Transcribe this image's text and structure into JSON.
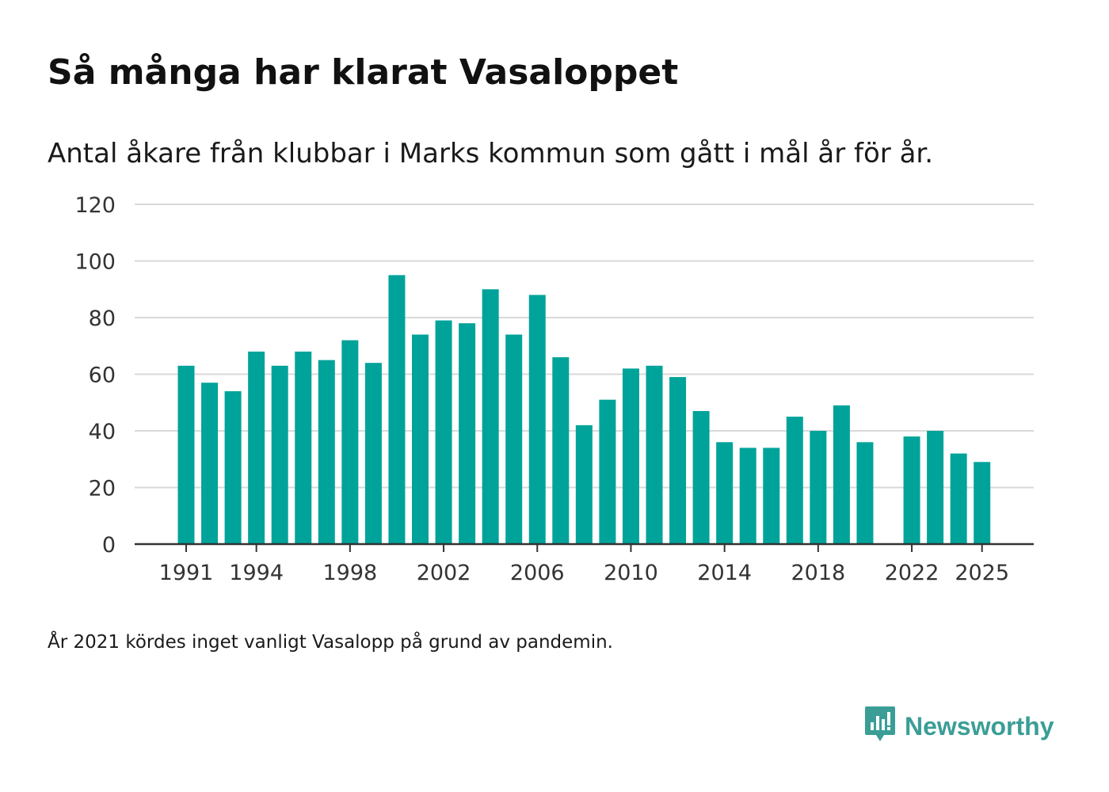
{
  "header": {
    "title": "Så många har klarat Vasaloppet",
    "subtitle": "Antal åkare från klubbar i Marks kommun som gått i mål år för år."
  },
  "footnote": "År 2021 kördes inget vanligt Vasalopp på grund av pandemin.",
  "brand": {
    "name": "Newsworthy",
    "icon": "newsworthy-logo-icon",
    "color": "#3a9e96"
  },
  "chart_data": {
    "type": "bar",
    "title": "Så många har klarat Vasaloppet",
    "xlabel": "",
    "ylabel": "",
    "bar_color": "#00a39a",
    "grid": true,
    "ylim": [
      0,
      120
    ],
    "yticks": [
      0,
      20,
      40,
      60,
      80,
      100,
      120
    ],
    "xtick_labels": [
      "1991",
      "1994",
      "1998",
      "2002",
      "2006",
      "2010",
      "2014",
      "2018",
      "2022",
      "2025"
    ],
    "categories": [
      1991,
      1992,
      1993,
      1994,
      1995,
      1996,
      1997,
      1998,
      1999,
      2000,
      2001,
      2002,
      2003,
      2004,
      2005,
      2006,
      2007,
      2008,
      2009,
      2010,
      2011,
      2012,
      2013,
      2014,
      2015,
      2016,
      2017,
      2018,
      2019,
      2020,
      2021,
      2022,
      2023,
      2024,
      2025
    ],
    "values": [
      63,
      57,
      54,
      68,
      63,
      68,
      65,
      72,
      64,
      95,
      74,
      79,
      78,
      90,
      74,
      88,
      66,
      42,
      51,
      62,
      63,
      59,
      47,
      36,
      34,
      34,
      45,
      40,
      49,
      36,
      null,
      38,
      40,
      32,
      29
    ]
  }
}
